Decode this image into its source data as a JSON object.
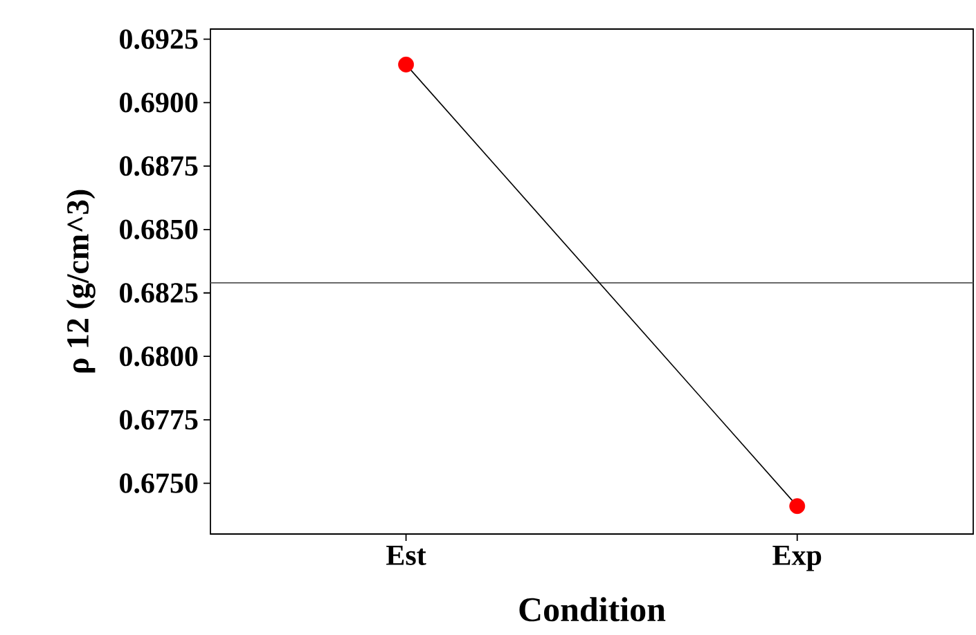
{
  "chart_data": {
    "type": "line",
    "xlabel": "Condition",
    "ylabel": "ρ 12 (g/cm^3)",
    "categories": [
      "Est",
      "Exp"
    ],
    "series": [
      {
        "color": "#000000",
        "marker": "none",
        "values": [
          0.6915,
          0.6741
        ]
      },
      {
        "type": "scatter",
        "color": "#ff0000",
        "marker": "circle",
        "values": [
          0.6915,
          0.6741
        ]
      }
    ],
    "ylim": [
      0.673,
      0.6929
    ],
    "yticks": [
      {
        "value": 0.675,
        "label": "0.6750"
      },
      0.6775,
      {
        "value": 0.68,
        "label": "0.6800"
      },
      0.6825,
      {
        "value": 0.685,
        "label": "0.6850"
      },
      0.6875,
      {
        "value": 0.69,
        "label": "0.6900"
      },
      0.6925
    ],
    "ref_lines": [
      {
        "axis": "y",
        "value": 0.6829,
        "color": "#555555"
      }
    ]
  }
}
